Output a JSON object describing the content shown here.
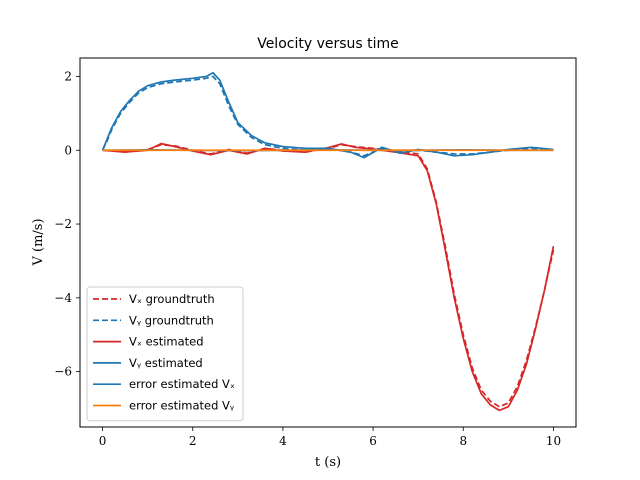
{
  "chart_data": {
    "type": "line",
    "title": "Velocity versus time",
    "xlabel": "t (s)",
    "ylabel": "V  (m/s)",
    "xlim": [
      -0.5,
      10.5
    ],
    "ylim": [
      -7.5,
      2.5
    ],
    "xticks": [
      0,
      2,
      4,
      6,
      8,
      10
    ],
    "yticks": [
      -6,
      -4,
      -2,
      0,
      2
    ],
    "ytick_labels": [
      "−6",
      "−4",
      "−2",
      "0",
      "2"
    ],
    "grid": false,
    "legend_position": "lower-left",
    "series": [
      {
        "name": "Vₓ groundtruth",
        "color": "#d62728",
        "dash": "dashed",
        "x": [
          0,
          0.5,
          1.0,
          1.3,
          1.6,
          2.0,
          2.4,
          2.8,
          3.2,
          3.6,
          4.0,
          4.5,
          5.0,
          5.3,
          5.6,
          6.0,
          6.5,
          7.0,
          7.2,
          7.4,
          7.6,
          7.8,
          8.0,
          8.2,
          8.4,
          8.6,
          8.8,
          9.0,
          9.2,
          9.4,
          9.6,
          9.8,
          10.0
        ],
        "y": [
          0,
          -0.03,
          0.02,
          0.15,
          0.12,
          0.0,
          -0.1,
          0.02,
          -0.08,
          0.05,
          0.0,
          -0.05,
          0.05,
          0.15,
          0.1,
          0.05,
          -0.02,
          -0.1,
          -0.5,
          -1.4,
          -2.6,
          -3.9,
          -5.0,
          -5.9,
          -6.5,
          -6.8,
          -6.95,
          -6.85,
          -6.4,
          -5.7,
          -4.8,
          -3.8,
          -2.7
        ]
      },
      {
        "name": "Vᵧ groundtruth",
        "color": "#1f77b4",
        "dash": "dashed",
        "x": [
          0,
          0.1,
          0.2,
          0.4,
          0.6,
          0.8,
          1.0,
          1.3,
          1.6,
          2.0,
          2.3,
          2.45,
          2.6,
          2.8,
          3.0,
          3.3,
          3.6,
          4.0,
          4.5,
          5.0,
          5.5,
          5.8,
          6.2,
          6.6,
          7.0,
          7.4,
          7.8,
          8.2,
          8.6,
          9.0,
          9.5,
          10.0
        ],
        "y": [
          0,
          0.25,
          0.55,
          1.0,
          1.3,
          1.55,
          1.7,
          1.8,
          1.85,
          1.9,
          1.95,
          2.0,
          1.8,
          1.2,
          0.7,
          0.35,
          0.15,
          0.05,
          0.0,
          0.05,
          -0.05,
          -0.15,
          0.05,
          -0.05,
          0.0,
          -0.05,
          -0.1,
          -0.1,
          -0.05,
          0.0,
          0.05,
          0.0
        ]
      },
      {
        "name": "Vₓ estimated",
        "color": "#d62728",
        "dash": "solid",
        "x": [
          0,
          0.5,
          1.0,
          1.3,
          1.6,
          2.0,
          2.4,
          2.8,
          3.2,
          3.6,
          4.0,
          4.5,
          5.0,
          5.3,
          5.6,
          6.0,
          6.5,
          7.0,
          7.2,
          7.4,
          7.6,
          7.8,
          8.0,
          8.2,
          8.4,
          8.6,
          8.8,
          9.0,
          9.2,
          9.4,
          9.6,
          9.8,
          10.0
        ],
        "y": [
          0,
          -0.05,
          0.0,
          0.18,
          0.1,
          -0.02,
          -0.12,
          0.0,
          -0.1,
          0.05,
          -0.02,
          -0.05,
          0.07,
          0.17,
          0.08,
          0.03,
          -0.05,
          -0.15,
          -0.55,
          -1.45,
          -2.7,
          -4.0,
          -5.1,
          -6.0,
          -6.6,
          -6.9,
          -7.05,
          -6.95,
          -6.5,
          -5.8,
          -4.85,
          -3.8,
          -2.6
        ]
      },
      {
        "name": "Vᵧ estimated",
        "color": "#1f77b4",
        "dash": "solid",
        "x": [
          0,
          0.1,
          0.2,
          0.4,
          0.6,
          0.8,
          1.0,
          1.3,
          1.6,
          2.0,
          2.3,
          2.45,
          2.6,
          2.8,
          3.0,
          3.3,
          3.6,
          4.0,
          4.5,
          5.0,
          5.5,
          5.8,
          6.2,
          6.6,
          7.0,
          7.4,
          7.8,
          8.2,
          8.6,
          9.0,
          9.5,
          10.0
        ],
        "y": [
          0,
          0.3,
          0.6,
          1.05,
          1.35,
          1.6,
          1.75,
          1.85,
          1.9,
          1.95,
          2.0,
          2.1,
          1.9,
          1.3,
          0.75,
          0.4,
          0.2,
          0.1,
          0.05,
          0.05,
          -0.05,
          -0.2,
          0.08,
          -0.08,
          0.02,
          -0.05,
          -0.15,
          -0.12,
          -0.05,
          0.02,
          0.08,
          0.02
        ]
      },
      {
        "name": "error estimated Vₓ",
        "color": "#1f77b4",
        "dash": "solid",
        "x": [
          0,
          1,
          2,
          3,
          4,
          5,
          6,
          7,
          8,
          9,
          10
        ],
        "y": [
          0,
          0.01,
          0,
          -0.01,
          0,
          0.01,
          0,
          0,
          0.01,
          0,
          0
        ]
      },
      {
        "name": "error estimated Vᵧ",
        "color": "#ff7f0e",
        "dash": "solid",
        "x": [
          0,
          1,
          2,
          3,
          4,
          5,
          6,
          7,
          8,
          9,
          10
        ],
        "y": [
          0,
          0,
          0,
          0,
          0,
          0,
          0,
          0,
          0,
          0,
          0
        ]
      }
    ]
  }
}
